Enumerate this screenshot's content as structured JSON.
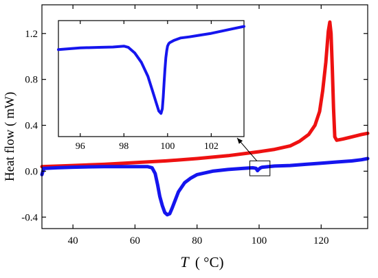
{
  "chart_data": [
    {
      "type": "line",
      "title": "",
      "xlabel": "T",
      "xlabel_unit": "( °C)",
      "ylabel": "Heat flow ( mW)",
      "xlim": [
        30,
        135
      ],
      "ylim": [
        -0.5,
        1.45
      ],
      "xticks": [
        40,
        60,
        80,
        100,
        120
      ],
      "yticks": [
        -0.4,
        0.0,
        0.4,
        0.8,
        1.2
      ],
      "ytick_labels": [
        "-0.4",
        "0.0",
        "0.4",
        "0.8",
        "1.2"
      ],
      "grid": false,
      "legend": "none",
      "series": [
        {
          "color": "#ee1111",
          "x": [
            30,
            40,
            50,
            60,
            70,
            80,
            90,
            100,
            105,
            110,
            113,
            116,
            118,
            119.5,
            120.5,
            121.5,
            122.3,
            122.8,
            123.2,
            123.6,
            124.0,
            124.4,
            125,
            127,
            130,
            133,
            135
          ],
          "y": [
            0.04,
            0.05,
            0.06,
            0.075,
            0.09,
            0.11,
            0.135,
            0.17,
            0.19,
            0.22,
            0.26,
            0.32,
            0.4,
            0.52,
            0.7,
            0.95,
            1.22,
            1.3,
            1.2,
            0.9,
            0.55,
            0.3,
            0.27,
            0.28,
            0.3,
            0.32,
            0.33
          ]
        },
        {
          "color": "#1515ee",
          "x": [
            30,
            30.6,
            31,
            35,
            40,
            50,
            60,
            64,
            65.5,
            66.5,
            67.3,
            68,
            68.8,
            69.6,
            70.4,
            71.2,
            72,
            73,
            74,
            76,
            78,
            80,
            85,
            90,
            95,
            98,
            99,
            99.5,
            100,
            100.5,
            101,
            103,
            105,
            110,
            115,
            120,
            125,
            130,
            133,
            135
          ],
          "y": [
            -0.03,
            0.025,
            0.025,
            0.03,
            0.035,
            0.04,
            0.04,
            0.04,
            0.03,
            -0.02,
            -0.12,
            -0.22,
            -0.3,
            -0.36,
            -0.38,
            -0.37,
            -0.32,
            -0.25,
            -0.18,
            -0.1,
            -0.06,
            -0.03,
            0.0,
            0.015,
            0.025,
            0.03,
            0.025,
            0.005,
            0.02,
            0.03,
            0.035,
            0.04,
            0.045,
            0.05,
            0.06,
            0.07,
            0.08,
            0.09,
            0.1,
            0.11
          ]
        }
      ]
    },
    {
      "type": "line",
      "title": "",
      "xlabel": "",
      "ylabel": "",
      "xlim": [
        95,
        103.5
      ],
      "ylim": [
        0,
        1
      ],
      "xticks": [
        96,
        98,
        100,
        102
      ],
      "grid": false,
      "legend": "none",
      "series": [
        {
          "color": "#1515ee",
          "x": [
            95,
            96,
            97,
            97.5,
            98,
            98.2,
            98.5,
            98.8,
            99.1,
            99.3,
            99.5,
            99.6,
            99.7,
            99.76,
            99.8,
            99.84,
            99.88,
            99.92,
            99.96,
            100.0,
            100.05,
            100.1,
            100.3,
            100.6,
            101,
            101.5,
            102,
            102.5,
            103,
            103.5
          ],
          "y": [
            0.75,
            0.765,
            0.77,
            0.772,
            0.78,
            0.77,
            0.72,
            0.64,
            0.52,
            0.4,
            0.28,
            0.22,
            0.2,
            0.24,
            0.34,
            0.46,
            0.58,
            0.68,
            0.74,
            0.78,
            0.8,
            0.81,
            0.83,
            0.85,
            0.86,
            0.875,
            0.89,
            0.91,
            0.93,
            0.95
          ]
        }
      ]
    }
  ]
}
